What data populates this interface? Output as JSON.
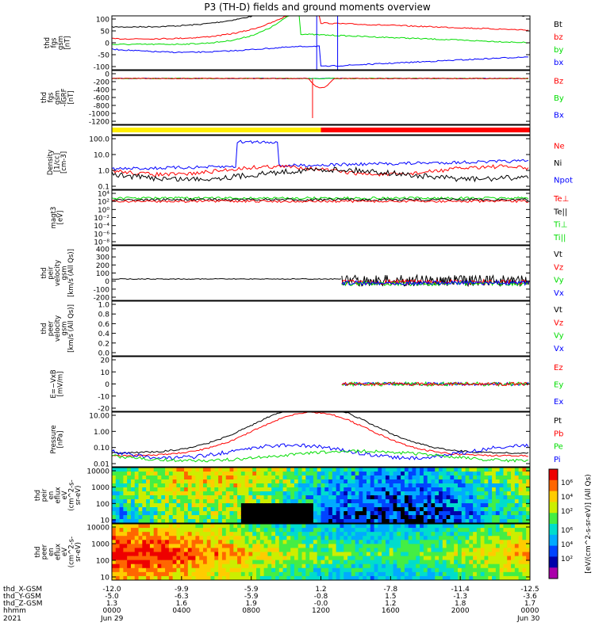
{
  "title": "P3 (TH-D) fields and ground moments overview",
  "colors": {
    "black": "#000000",
    "red": "#ff0000",
    "green": "#00dd00",
    "blue": "#0000ff",
    "yellow": "#ffee00"
  },
  "chart_data": [
    {
      "type": "line",
      "panel": "fgs_gsm",
      "ylabel": [
        "thd",
        "fgs",
        "gsm",
        "[nT]"
      ],
      "yticks": [
        "100",
        "50",
        "0",
        "-50",
        "-100"
      ],
      "ylim": [
        -100,
        100
      ],
      "legend": [
        {
          "name": "Bt",
          "color": "black"
        },
        {
          "name": "bz",
          "color": "red"
        },
        {
          "name": "by",
          "color": "green"
        },
        {
          "name": "bx",
          "color": "blue"
        }
      ]
    },
    {
      "type": "line",
      "panel": "fgs_gsm_zoom",
      "ylabel": [
        "thd",
        "fgs",
        "gsm",
        "-IGRF",
        "[nT]"
      ],
      "yticks": [
        "0",
        "-200",
        "-400",
        "-600",
        "-800",
        "-1000",
        "-1200"
      ],
      "ylim": [
        -1300,
        50
      ],
      "legend": [
        {
          "name": "Bz",
          "color": "red"
        },
        {
          "name": "By",
          "color": "green"
        },
        {
          "name": "Bx",
          "color": "blue"
        }
      ]
    },
    {
      "type": "bar",
      "panel": "region_bar",
      "segments": [
        {
          "color": "yellow",
          "from": 0,
          "to": 0.5
        },
        {
          "color": "red",
          "from": 0.5,
          "to": 1
        }
      ]
    },
    {
      "type": "line",
      "panel": "density",
      "scale": "log",
      "ylabel": [
        "Density",
        "[1/cc]",
        "[cm-3]"
      ],
      "yticks": [
        "100.0",
        "10.0",
        "1.0",
        "0.1"
      ],
      "legend": [
        {
          "name": "Ne",
          "color": "red"
        },
        {
          "name": "Ni",
          "color": "black"
        },
        {
          "name": "Npot",
          "color": "blue"
        }
      ]
    },
    {
      "type": "line",
      "panel": "temperature",
      "scale": "log",
      "ylabel": [
        "magt3",
        "[eV]"
      ],
      "yticks": [
        "10⁴",
        "10²",
        "10⁰",
        "10⁻²",
        "10⁻⁴",
        "10⁻⁶",
        "10⁻⁸"
      ],
      "legend": [
        {
          "name": "Te⊥",
          "color": "red"
        },
        {
          "name": "Te||",
          "color": "black"
        },
        {
          "name": "Ti⊥",
          "color": "green"
        },
        {
          "name": "Ti||",
          "color": "green"
        }
      ]
    },
    {
      "type": "line",
      "panel": "peir_velocity",
      "ylabel": [
        "thd",
        "peir",
        "velocity",
        "gsm",
        "[km/s (All Qs)]"
      ],
      "yticks": [
        "400",
        "300",
        "200",
        "100",
        "0",
        "-100",
        "-200"
      ],
      "ylim": [
        -200,
        400
      ],
      "legend": [
        {
          "name": "Vt",
          "color": "black"
        },
        {
          "name": "Vz",
          "color": "red"
        },
        {
          "name": "Vy",
          "color": "green"
        },
        {
          "name": "Vx",
          "color": "blue"
        }
      ]
    },
    {
      "type": "line",
      "panel": "peer_velocity",
      "ylabel": [
        "thd",
        "peer",
        "velocity",
        "gsm",
        "[km/s (All Qs)]"
      ],
      "yticks": [
        "1.0",
        "0.8",
        "0.6",
        "0.4",
        "0.2",
        "0.0"
      ],
      "ylim": [
        0,
        1
      ],
      "legend": [
        {
          "name": "Vt",
          "color": "black"
        },
        {
          "name": "Vz",
          "color": "red"
        },
        {
          "name": "Vy",
          "color": "green"
        },
        {
          "name": "Vx",
          "color": "blue"
        }
      ]
    },
    {
      "type": "line",
      "panel": "efield",
      "ylabel": [
        "E=−VxB",
        "[mV/m]"
      ],
      "yticks": [
        "20",
        "10",
        "0",
        "-10",
        "-20"
      ],
      "ylim": [
        -20,
        20
      ],
      "legend": [
        {
          "name": "Ez",
          "color": "red"
        },
        {
          "name": "Ey",
          "color": "green"
        },
        {
          "name": "Ex",
          "color": "blue"
        }
      ]
    },
    {
      "type": "line",
      "panel": "pressure",
      "scale": "log",
      "ylabel": [
        "Pressure",
        "[nPa]"
      ],
      "yticks": [
        "10.00",
        "1.00",
        "0.10",
        "0.01"
      ],
      "legend": [
        {
          "name": "Pt",
          "color": "black"
        },
        {
          "name": "Pb",
          "color": "red"
        },
        {
          "name": "Pe",
          "color": "green"
        },
        {
          "name": "Pi",
          "color": "blue"
        }
      ]
    },
    {
      "type": "heatmap",
      "panel": "peir_spectrogram",
      "scale": "log",
      "ylabel": [
        "thd",
        "peir",
        "en",
        "eflux",
        "eV",
        "(cm^2-s-",
        "sr-eV)"
      ],
      "yticks": [
        "10000",
        "1000",
        "100",
        "10"
      ]
    },
    {
      "type": "heatmap",
      "panel": "peer_spectrogram",
      "scale": "log",
      "ylabel": [
        "thd",
        "peer",
        "en",
        "eflux",
        "eV",
        "(cm^2-s-",
        "sr-eV)"
      ],
      "yticks": [
        "10000",
        "1000",
        "100",
        "10"
      ]
    }
  ],
  "colorbar": {
    "label": "[eV/(cm^2-s-sr-eV)] (All Qs)",
    "ticks_top": [
      "10⁶",
      "10⁴",
      "10²"
    ],
    "ticks_bottom": [
      "10⁶",
      "10⁴",
      "10²"
    ]
  },
  "xaxis": {
    "rows": [
      {
        "label": "thd_X-GSM",
        "values": [
          "-12.0",
          "-9.9",
          "-5.9",
          "1.2",
          "-7.8",
          "-11.4",
          "-12.5"
        ]
      },
      {
        "label": "thd_Y-GSM",
        "values": [
          "-5.0",
          "-6.3",
          "-5.9",
          "-0.8",
          "1.5",
          "-1.3",
          "-3.6"
        ]
      },
      {
        "label": "thd_Z-GSM",
        "values": [
          "1.3",
          "1.6",
          "1.9",
          "-0.0",
          "1.2",
          "1.8",
          "1.7"
        ]
      },
      {
        "label": "hhmm",
        "values": [
          "0000",
          "0400",
          "0800",
          "1200",
          "1600",
          "2000",
          "0000"
        ]
      }
    ],
    "year": "2021",
    "dates": [
      "Jun 29",
      "Jun 30"
    ]
  }
}
